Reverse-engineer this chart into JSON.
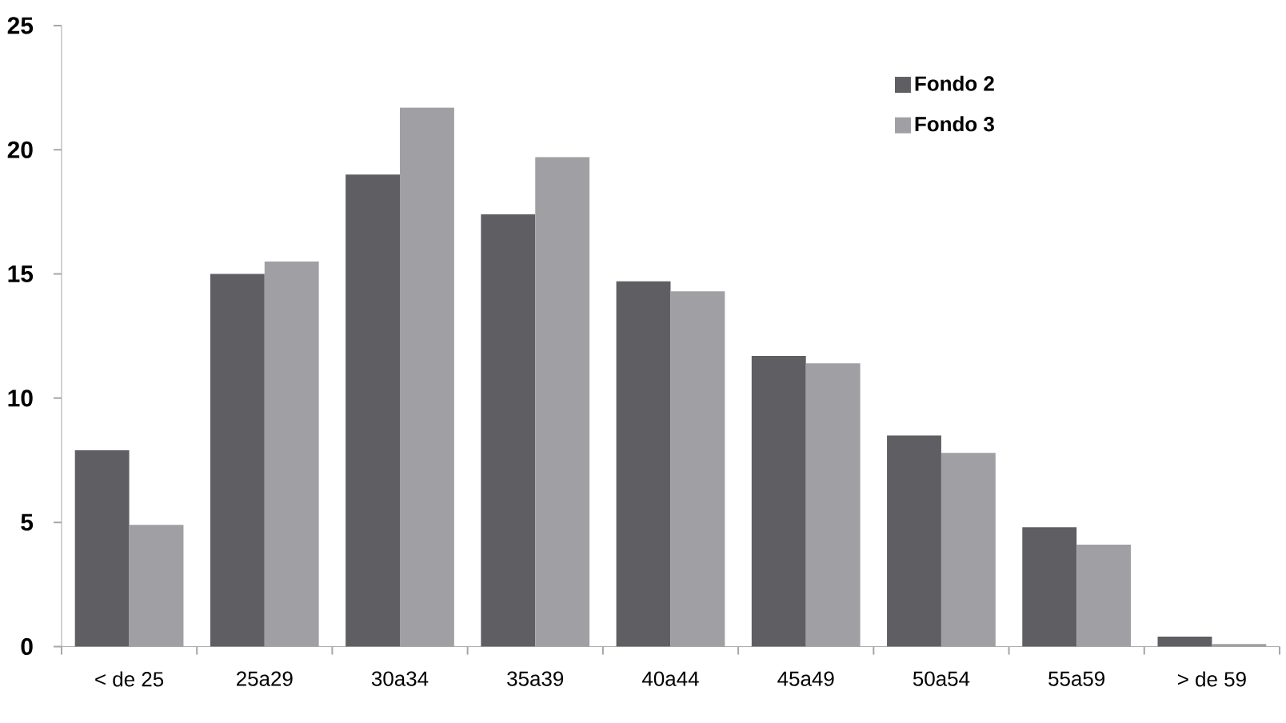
{
  "chart_data": {
    "type": "bar",
    "categories": [
      "< de 25",
      "25a29",
      "30a34",
      "35a39",
      "40a44",
      "45a49",
      "50a54",
      "55a59",
      "> de 59"
    ],
    "series": [
      {
        "name": "Fondo 2",
        "color": "#5f5f63",
        "values": [
          7.9,
          15.0,
          19.0,
          17.4,
          14.7,
          11.7,
          8.5,
          4.8,
          0.4
        ]
      },
      {
        "name": "Fondo 3",
        "color": "#a0a0a4",
        "values": [
          4.9,
          15.5,
          21.7,
          19.7,
          14.3,
          11.4,
          7.8,
          4.1,
          0.1
        ]
      }
    ],
    "ylim": [
      0,
      25
    ],
    "yticks": [
      0,
      5,
      10,
      15,
      20,
      25
    ],
    "grid": false,
    "legend": "top right"
  }
}
